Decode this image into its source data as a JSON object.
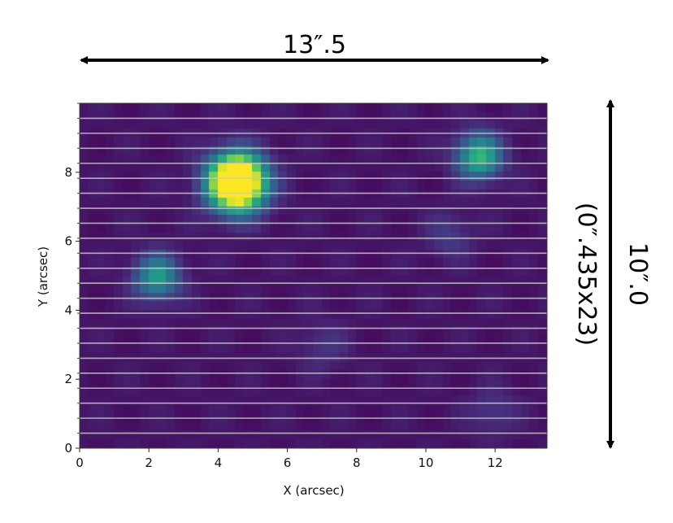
{
  "chart_data": {
    "type": "heatmap",
    "xlabel": "X (arcsec)",
    "ylabel": "Y (arcsec)",
    "xlim": [
      0,
      13.5
    ],
    "ylim": [
      0,
      10.0
    ],
    "x_ticks": [
      "0",
      "2",
      "4",
      "6",
      "8",
      "10",
      "12"
    ],
    "y_ticks": [
      "0",
      "2",
      "4",
      "6",
      "8"
    ],
    "colormap": "viridis",
    "background_level": 0.06,
    "sources": [
      {
        "x": 4.55,
        "y": 7.7,
        "amplitude": 1.0,
        "sigma": 0.55,
        "saturated": true
      },
      {
        "x": 11.55,
        "y": 8.45,
        "amplitude": 0.62,
        "sigma": 0.45
      },
      {
        "x": 2.25,
        "y": 4.95,
        "amplitude": 0.5,
        "sigma": 0.45
      },
      {
        "x": 10.7,
        "y": 6.15,
        "amplitude": 0.13,
        "sigma": 0.45
      },
      {
        "x": 7.05,
        "y": 2.95,
        "amplitude": 0.1,
        "sigma": 0.5
      },
      {
        "x": 11.95,
        "y": 1.05,
        "amplitude": 0.12,
        "sigma": 0.45
      }
    ],
    "slit_lines": 23,
    "slit_line_color": "#c8c8c8",
    "grid": false
  },
  "annotations": {
    "width_label": "13″.5",
    "height_label": "10″.0",
    "height_sublabel": "(0″.435x23)"
  }
}
